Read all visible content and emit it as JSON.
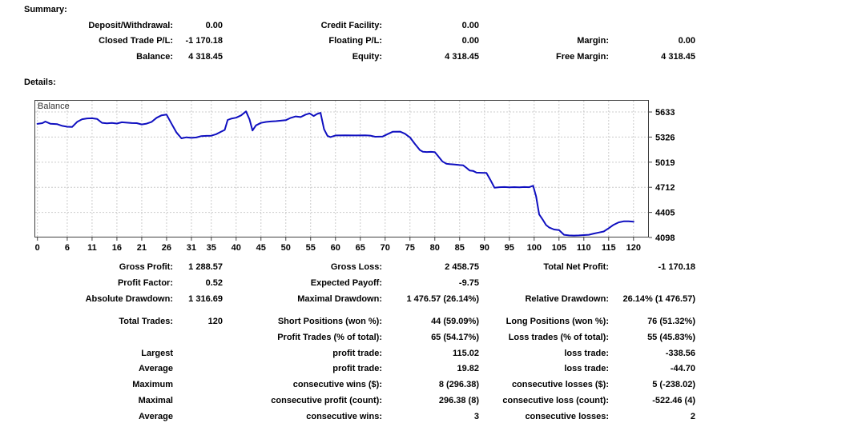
{
  "summary": {
    "title": "Summary:",
    "rows": [
      [
        "Deposit/Withdrawal:",
        "0.00",
        "Credit Facility:",
        "0.00",
        "",
        ""
      ],
      [
        "Closed Trade P/L:",
        "-1 170.18",
        "Floating P/L:",
        "0.00",
        "Margin:",
        "0.00"
      ],
      [
        "Balance:",
        "4 318.45",
        "Equity:",
        "4 318.45",
        "Free Margin:",
        "4 318.45"
      ]
    ]
  },
  "details": {
    "title": "Details:",
    "blockA": [
      [
        "Gross Profit:",
        "1 288.57",
        "Gross Loss:",
        "2 458.75",
        "Total Net Profit:",
        "-1 170.18"
      ],
      [
        "Profit Factor:",
        "0.52",
        "Expected Payoff:",
        "-9.75",
        "",
        ""
      ],
      [
        "Absolute Drawdown:",
        "1 316.69",
        "Maximal Drawdown:",
        "1 476.57 (26.14%)",
        "Relative Drawdown:",
        "26.14% (1 476.57)"
      ]
    ],
    "blockB": [
      [
        "Total Trades:",
        "120",
        "Short Positions (won %):",
        "44 (59.09%)",
        "Long Positions (won %):",
        "76 (51.32%)"
      ],
      [
        "",
        "",
        "Profit Trades (% of total):",
        "65 (54.17%)",
        "Loss trades (% of total):",
        "55 (45.83%)"
      ],
      [
        "Largest",
        "",
        "profit trade:",
        "115.02",
        "loss trade:",
        "-338.56"
      ],
      [
        "Average",
        "",
        "profit trade:",
        "19.82",
        "loss trade:",
        "-44.70"
      ],
      [
        "Maximum",
        "",
        "consecutive wins ($):",
        "8 (296.38)",
        "consecutive losses ($):",
        "5 (-238.02)"
      ],
      [
        "Maximal",
        "",
        "consecutive profit (count):",
        "296.38 (8)",
        "consecutive loss (count):",
        "-522.46 (4)"
      ],
      [
        "Average",
        "",
        "consecutive wins:",
        "3",
        "consecutive losses:",
        "2"
      ]
    ]
  },
  "chart_data": {
    "type": "line",
    "title": "Balance",
    "legend_position": "top-left",
    "grid": true,
    "line_color": "#0f0fc0",
    "grid_color": "#cccccc",
    "frame_color": "#404040",
    "x_ticks": [
      0,
      6,
      11,
      16,
      21,
      26,
      31,
      35,
      40,
      45,
      50,
      55,
      60,
      65,
      70,
      75,
      80,
      85,
      90,
      95,
      100,
      105,
      110,
      115,
      120
    ],
    "y_ticks": [
      5633,
      5326,
      5019,
      4712,
      4405,
      4098
    ],
    "xlim": [
      -0.6,
      123.1
    ],
    "ylim": [
      4098,
      5780
    ],
    "points": [
      [
        0,
        5488
      ],
      [
        1,
        5496
      ],
      [
        1.6,
        5516
      ],
      [
        2.6,
        5490
      ],
      [
        4,
        5484
      ],
      [
        5,
        5463
      ],
      [
        6,
        5452
      ],
      [
        7,
        5450
      ],
      [
        8,
        5512
      ],
      [
        9,
        5544
      ],
      [
        10,
        5554
      ],
      [
        11,
        5556
      ],
      [
        12,
        5548
      ],
      [
        13,
        5500
      ],
      [
        14,
        5494
      ],
      [
        15,
        5498
      ],
      [
        16,
        5492
      ],
      [
        17,
        5507
      ],
      [
        18,
        5502
      ],
      [
        19,
        5497
      ],
      [
        20,
        5496
      ],
      [
        21,
        5481
      ],
      [
        22,
        5491
      ],
      [
        23,
        5512
      ],
      [
        24,
        5562
      ],
      [
        25,
        5592
      ],
      [
        26,
        5601
      ],
      [
        27,
        5490
      ],
      [
        28,
        5382
      ],
      [
        29,
        5311
      ],
      [
        30,
        5323
      ],
      [
        31,
        5316
      ],
      [
        32,
        5321
      ],
      [
        33,
        5338
      ],
      [
        34,
        5341
      ],
      [
        35,
        5343
      ],
      [
        36,
        5361
      ],
      [
        37,
        5393
      ],
      [
        37.7,
        5413
      ],
      [
        38.3,
        5536
      ],
      [
        39,
        5551
      ],
      [
        40,
        5563
      ],
      [
        41,
        5591
      ],
      [
        42,
        5640
      ],
      [
        42.7,
        5541
      ],
      [
        43.3,
        5406
      ],
      [
        44,
        5469
      ],
      [
        45,
        5499
      ],
      [
        46,
        5511
      ],
      [
        47,
        5517
      ],
      [
        48,
        5521
      ],
      [
        49,
        5527
      ],
      [
        50,
        5533
      ],
      [
        51,
        5561
      ],
      [
        52,
        5579
      ],
      [
        53,
        5571
      ],
      [
        54,
        5601
      ],
      [
        54.8,
        5616
      ],
      [
        55.6,
        5583
      ],
      [
        56.3,
        5609
      ],
      [
        57,
        5623
      ],
      [
        57.7,
        5422
      ],
      [
        58.4,
        5341
      ],
      [
        59,
        5326
      ],
      [
        60,
        5346
      ],
      [
        62,
        5348
      ],
      [
        64,
        5346
      ],
      [
        66,
        5347
      ],
      [
        67,
        5344
      ],
      [
        68,
        5330
      ],
      [
        69.5,
        5333
      ],
      [
        70.5,
        5362
      ],
      [
        71.5,
        5391
      ],
      [
        73,
        5393
      ],
      [
        74,
        5366
      ],
      [
        75,
        5321
      ],
      [
        76,
        5241
      ],
      [
        77,
        5166
      ],
      [
        77.6,
        5146
      ],
      [
        78.4,
        5143
      ],
      [
        79.2,
        5145
      ],
      [
        80,
        5141
      ],
      [
        80.7,
        5091
      ],
      [
        81.5,
        5029
      ],
      [
        82.3,
        5001
      ],
      [
        83,
        4996
      ],
      [
        84,
        4991
      ],
      [
        85,
        4984
      ],
      [
        85.7,
        4981
      ],
      [
        86.4,
        4949
      ],
      [
        87,
        4917
      ],
      [
        87.7,
        4913
      ],
      [
        88.4,
        4891
      ],
      [
        89.4,
        4889
      ],
      [
        90.4,
        4887
      ],
      [
        91.2,
        4801
      ],
      [
        92,
        4707
      ],
      [
        93,
        4713
      ],
      [
        94,
        4715
      ],
      [
        95,
        4712
      ],
      [
        96,
        4714
      ],
      [
        97,
        4712
      ],
      [
        98,
        4715
      ],
      [
        99,
        4713
      ],
      [
        99.8,
        4731
      ],
      [
        100.4,
        4601
      ],
      [
        101,
        4381
      ],
      [
        101.7,
        4319
      ],
      [
        102.4,
        4251
      ],
      [
        103,
        4221
      ],
      [
        104,
        4196
      ],
      [
        105,
        4189
      ],
      [
        105.5,
        4161
      ],
      [
        106,
        4131
      ],
      [
        107,
        4123
      ],
      [
        108,
        4121
      ],
      [
        109,
        4123
      ],
      [
        110,
        4127
      ],
      [
        111,
        4131
      ],
      [
        112,
        4146
      ],
      [
        113,
        4159
      ],
      [
        114,
        4171
      ],
      [
        115,
        4211
      ],
      [
        116,
        4253
      ],
      [
        117,
        4283
      ],
      [
        118,
        4296
      ],
      [
        119,
        4297
      ],
      [
        120,
        4291
      ]
    ]
  }
}
